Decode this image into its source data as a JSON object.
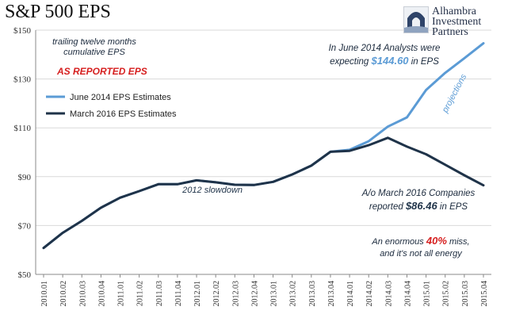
{
  "chart_data": {
    "type": "line",
    "title": "S&P 500 EPS",
    "subtitle": "trailing twelve months cumulative EPS",
    "tag": "AS REPORTED EPS",
    "ylim": [
      50,
      150
    ],
    "yticks": [
      "$50",
      "$70",
      "$90",
      "$110",
      "$130",
      "$150"
    ],
    "ytick_values": [
      50,
      70,
      90,
      110,
      130,
      150
    ],
    "grid": true,
    "legend_position": "top-left",
    "categories": [
      "2010.01",
      "2010.02",
      "2010.03",
      "2010.04",
      "2011.01",
      "2011.02",
      "2011.03",
      "2011.04",
      "2012.01",
      "2012.02",
      "2012.03",
      "2012.04",
      "2013.01",
      "2013.02",
      "2013.03",
      "2013.04",
      "2014.01",
      "2014.02",
      "2014.03",
      "2014.04",
      "2015.01",
      "2015.02",
      "2015.03",
      "2015.04"
    ],
    "series": [
      {
        "name": "June 2014 EPS Estimates",
        "color": "#5b9bd5",
        "values": [
          60.8,
          67.0,
          71.9,
          77.3,
          81.4,
          84.1,
          86.9,
          86.9,
          88.5,
          87.7,
          86.7,
          86.6,
          87.9,
          90.9,
          94.5,
          100.2,
          101.0,
          104.5,
          110.5,
          114.3,
          125.5,
          132.5,
          138.5,
          144.6
        ]
      },
      {
        "name": "March 2016 EPS Estimates",
        "color": "#1f3349",
        "values": [
          60.8,
          67.0,
          71.9,
          77.3,
          81.4,
          84.1,
          86.9,
          86.9,
          88.5,
          87.7,
          86.7,
          86.6,
          87.9,
          90.9,
          94.5,
          100.2,
          100.6,
          102.9,
          105.9,
          102.3,
          99.2,
          94.9,
          90.6,
          86.46
        ]
      }
    ],
    "annotations": {
      "slowdown": "2012 slowdown",
      "projections": "projections",
      "june_line1": "In June 2014 Analysts were",
      "june_line2_pre": "expecting",
      "june_value": "$144.60",
      "june_line2_post": "in EPS",
      "march_line1": "A/o March 2016 Companies",
      "march_line2_pre": "reported",
      "march_value": "$86.46",
      "march_line2_post": "in EPS",
      "miss_pre": "An enormous",
      "miss_value": "40%",
      "miss_post": "miss,",
      "miss_line2": "and it's not all energy"
    },
    "colors": {
      "grid": "#d9d9d9",
      "axis": "#888888",
      "accent_red": "#d62020",
      "accent_blue": "#5b9bd5"
    }
  },
  "logo": {
    "line1": "Alhambra",
    "line2": "Investment",
    "line3": "Partners"
  }
}
